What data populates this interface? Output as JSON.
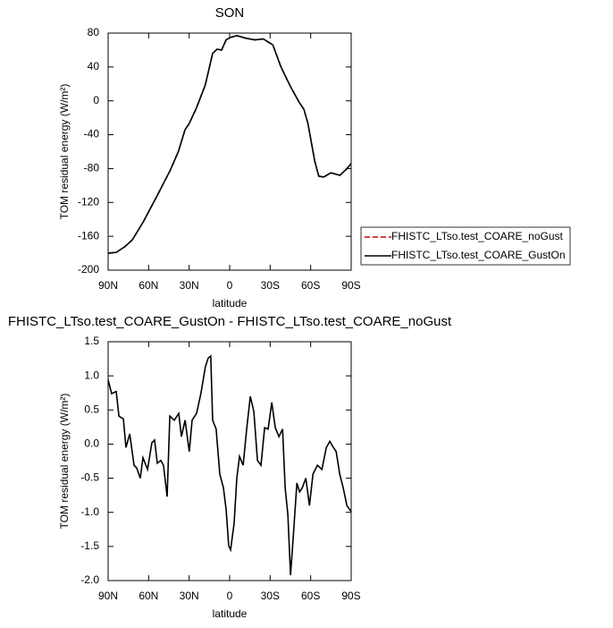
{
  "chart_data": [
    {
      "type": "line",
      "title": "SON",
      "xlabel": "latitude",
      "ylabel": "TOM residual energy (W/m²)",
      "x": [
        90,
        84,
        77.4,
        72,
        64,
        54,
        44,
        38,
        33,
        30,
        24.5,
        18,
        12.6,
        9.3,
        6,
        2.6,
        -0.7,
        -5.3,
        -12,
        -18.5,
        -25,
        -32,
        -38,
        -45,
        -51.6,
        -55,
        -58,
        -63,
        -66,
        -69.6,
        -75,
        -81.6,
        -86.9,
        -90
      ],
      "series": [
        {
          "name": "FHISTC_LTso.test_COARE_noGust",
          "color": "#cc0000",
          "dash": "dashed",
          "values": [
            -180,
            -179,
            -172,
            -164,
            -143,
            -113,
            -82,
            -60,
            -34,
            -27,
            -8,
            19,
            56,
            61,
            60,
            72,
            75,
            77,
            74,
            72,
            73,
            66,
            40,
            17,
            -2,
            -10,
            -27,
            -71,
            -89,
            -90,
            -85,
            -88,
            -80,
            -74
          ]
        },
        {
          "name": "FHISTC_LTso.test_COARE_GustOn",
          "color": "#000000",
          "dash": "solid",
          "values": [
            -180,
            -179,
            -172,
            -164,
            -143,
            -113,
            -82,
            -60,
            -34,
            -27,
            -8,
            19,
            56,
            61,
            60,
            72,
            75,
            77,
            74,
            72,
            73,
            66,
            40,
            17,
            -2,
            -10,
            -27,
            -71,
            -89,
            -90,
            -85,
            -88,
            -80,
            -74
          ]
        }
      ],
      "xlim": [
        90,
        -90
      ],
      "xticks": [
        {
          "value": 90,
          "label": "90N"
        },
        {
          "value": 60,
          "label": "60N"
        },
        {
          "value": 30,
          "label": "30N"
        },
        0,
        {
          "value": -30,
          "label": "30S"
        },
        {
          "value": -60,
          "label": "60S"
        },
        {
          "value": -90,
          "label": "90S"
        }
      ],
      "ylim": [
        -200,
        80
      ],
      "yticks": [
        80,
        40,
        0,
        -40,
        -80,
        -120,
        -160,
        -200
      ],
      "legend": "right"
    },
    {
      "type": "line",
      "title": "FHISTC_LTso.test_COARE_GustOn - FHISTC_LTso.test_COARE_noGust",
      "xlabel": "latitude",
      "ylabel": "TOM residual energy (W/m²)",
      "x": [
        90,
        87.4,
        84,
        82,
        78.7,
        76.8,
        74,
        70.8,
        68.8,
        66.2,
        64.2,
        60.8,
        57.6,
        55.6,
        53.6,
        51,
        49,
        46.3,
        44.3,
        41,
        37.7,
        35.7,
        33,
        29.9,
        27.8,
        24.5,
        21.3,
        18,
        15.9,
        14,
        12.6,
        10,
        7.3,
        4.6,
        2.6,
        0.7,
        -0.7,
        -3.3,
        -5.3,
        -7.3,
        -10,
        -12.6,
        -15.3,
        -17.9,
        -20.6,
        -23.2,
        -25.9,
        -28.5,
        -31.2,
        -33.8,
        -36.5,
        -39.2,
        -41.1,
        -43.1,
        -45.1,
        -47.1,
        -49.8,
        -51.8,
        -53.8,
        -56.4,
        -59.1,
        -61.7,
        -65,
        -68.3,
        -71.6,
        -74.2,
        -76.2,
        -78.9,
        -81.5,
        -84.1,
        -86.8,
        -90
      ],
      "values": [
        0.94,
        0.74,
        0.77,
        0.41,
        0.37,
        -0.05,
        0.15,
        -0.31,
        -0.35,
        -0.5,
        -0.2,
        -0.37,
        0.02,
        0.06,
        -0.28,
        -0.24,
        -0.31,
        -0.77,
        0.41,
        0.35,
        0.45,
        0.11,
        0.35,
        -0.11,
        0.35,
        0.45,
        0.74,
        1.13,
        1.26,
        1.29,
        0.35,
        0.22,
        -0.44,
        -0.64,
        -0.96,
        -1.49,
        -1.55,
        -1.16,
        -0.5,
        -0.18,
        -0.31,
        0.22,
        0.7,
        0.48,
        -0.24,
        -0.31,
        0.24,
        0.22,
        0.61,
        0.24,
        0.11,
        0.22,
        -0.64,
        -1.03,
        -1.92,
        -1.36,
        -0.57,
        -0.7,
        -0.64,
        -0.5,
        -0.9,
        -0.44,
        -0.31,
        -0.37,
        -0.05,
        0.04,
        -0.03,
        -0.11,
        -0.44,
        -0.64,
        -0.9,
        -0.99
      ],
      "color": "#000000",
      "xlim": [
        90,
        -90
      ],
      "xticks": [
        {
          "value": 90,
          "label": "90N"
        },
        {
          "value": 60,
          "label": "60N"
        },
        {
          "value": 30,
          "label": "30N"
        },
        0,
        {
          "value": -30,
          "label": "30S"
        },
        {
          "value": -60,
          "label": "60S"
        },
        {
          "value": -90,
          "label": "90S"
        }
      ],
      "ylim": [
        -2,
        1.5
      ],
      "yticks": [
        1.5,
        {
          "value": 1,
          "label": "1.0"
        },
        0.5,
        {
          "value": 0,
          "label": "0.0"
        },
        -0.5,
        {
          "value": -1,
          "label": "-1.0"
        },
        -1.5,
        {
          "value": -2,
          "label": "-2.0"
        }
      ]
    }
  ]
}
